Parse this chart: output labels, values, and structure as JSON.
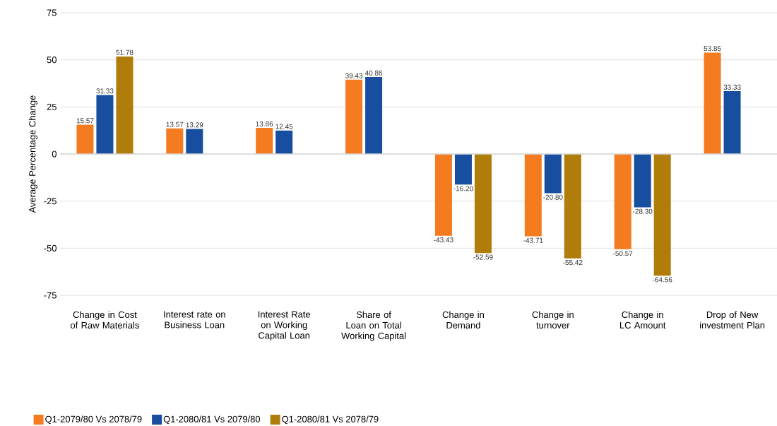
{
  "chart_data": {
    "type": "bar",
    "ylabel": "Average Percentage Change",
    "categories": [
      "Change in Cost of Raw Materials",
      "Interest rate on Business Loan",
      "Interest Rate on Working Capital Loan",
      "Share of Loan on Total Working Capital",
      "Change in Demand",
      "Change in turnover",
      "Change in LC Amount",
      "Drop of New investment Plan"
    ],
    "series": [
      {
        "name": "Q1-2079/80 Vs 2078/79",
        "color": "#f47b20",
        "values": [
          15.57,
          13.57,
          13.86,
          39.43,
          -43.43,
          -43.71,
          -50.57,
          53.85
        ],
        "value_labels": [
          "15.57",
          "13.57",
          "13.86",
          "39.43",
          "-43.43",
          "-43.71",
          "-50.57",
          "53.85"
        ]
      },
      {
        "name": "Q1-2080/81 Vs 2079/80",
        "color": "#174ea0",
        "values": [
          31.33,
          13.29,
          12.45,
          40.86,
          -16.2,
          -20.8,
          -28.3,
          33.33
        ],
        "value_labels": [
          "31.33",
          "13.29",
          "12.45",
          "40.86",
          "-16.20",
          "-20.80",
          "-28.30",
          "33.33"
        ]
      },
      {
        "name": "Q1-2080/81 Vs 2078/79",
        "color": "#b07d0a",
        "values": [
          51.78,
          null,
          null,
          null,
          -52.59,
          -55.42,
          -64.56,
          null
        ],
        "value_labels": [
          "51.78",
          null,
          null,
          null,
          "-52.59",
          "-55.42",
          "-64.56",
          null
        ]
      }
    ],
    "ylim": [
      -75,
      75
    ],
    "yticks": [
      -75,
      -50,
      -25,
      0,
      25,
      50,
      75
    ],
    "grid": "y",
    "legend": "bottom left"
  }
}
